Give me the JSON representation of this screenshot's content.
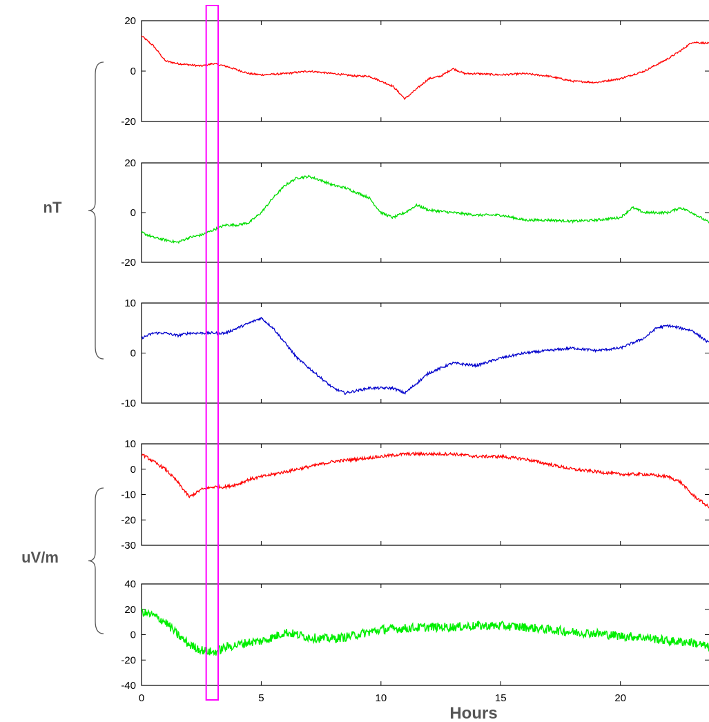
{
  "chart_data": {
    "type": "line",
    "xlabel": "Hours",
    "x_ticks": [
      0,
      5,
      10,
      15,
      20
    ],
    "xlim": [
      0,
      23.7
    ],
    "highlight_window": [
      2.7,
      3.2
    ],
    "highlight_color": "#ff00ff",
    "groups": [
      {
        "label": "nT",
        "panels": [
          0,
          1,
          2
        ]
      },
      {
        "label": "uV/m",
        "panels": [
          3,
          4
        ]
      }
    ],
    "panels": [
      {
        "color": "#ff0000",
        "ylim": [
          -20,
          20
        ],
        "yticks": [
          -20,
          0,
          20
        ],
        "noise": 0.35,
        "x": [
          0,
          0.5,
          1,
          1.5,
          2,
          2.5,
          3,
          3.5,
          4,
          4.5,
          5,
          6,
          7,
          8,
          9,
          9.5,
          10,
          10.5,
          11,
          11.5,
          12,
          12.5,
          13,
          13.5,
          14,
          15,
          16,
          17,
          18,
          19,
          20,
          21,
          22,
          22.5,
          23,
          23.7
        ],
        "y": [
          14,
          10,
          4,
          3,
          2.5,
          2,
          3,
          2,
          0.5,
          -1,
          -1.5,
          -1,
          0,
          -1,
          -2,
          -2,
          -4,
          -6,
          -11,
          -7,
          -3,
          -2,
          1,
          -1,
          -1,
          -1.5,
          -1,
          -2,
          -4,
          -4.5,
          -3,
          0,
          5,
          8,
          11.5,
          11
        ]
      },
      {
        "color": "#00dd00",
        "ylim": [
          -20,
          20
        ],
        "yticks": [
          -20,
          0,
          20
        ],
        "noise": 0.5,
        "x": [
          0,
          0.5,
          1,
          1.5,
          2,
          2.5,
          3,
          3.5,
          4,
          4.5,
          5,
          5.5,
          6,
          6.5,
          7,
          7.5,
          8,
          8.5,
          9,
          9.5,
          10,
          10.5,
          11,
          11.5,
          12,
          13,
          14,
          15,
          16,
          17,
          18,
          19,
          20,
          20.5,
          21,
          22,
          22.5,
          23,
          23.7
        ],
        "y": [
          -8,
          -10,
          -11,
          -12,
          -10,
          -9,
          -7,
          -5,
          -5,
          -4,
          0,
          6,
          11,
          14,
          14.5,
          13,
          11,
          10,
          8,
          6,
          0,
          -2,
          0,
          3,
          1,
          0,
          -1,
          -1,
          -3,
          -3,
          -3.5,
          -3,
          -2,
          2,
          0,
          0,
          2,
          0,
          -4
        ]
      },
      {
        "color": "#0000cc",
        "ylim": [
          -10,
          10
        ],
        "yticks": [
          -10,
          0,
          10
        ],
        "noise": 0.25,
        "x": [
          0,
          0.5,
          1,
          1.5,
          2,
          2.5,
          3,
          3.5,
          4,
          4.5,
          5,
          5.5,
          6,
          6.5,
          7,
          7.5,
          8,
          8.5,
          9,
          9.5,
          10,
          10.5,
          11,
          11.5,
          12,
          12.5,
          13,
          14,
          15,
          16,
          17,
          18,
          19,
          20,
          21,
          21.5,
          22,
          22.5,
          23,
          23.7
        ],
        "y": [
          3,
          4,
          4,
          3.5,
          4,
          4,
          4,
          4,
          5,
          6,
          7,
          5,
          2,
          -1,
          -3,
          -5,
          -7,
          -8,
          -7.5,
          -7,
          -7,
          -7,
          -8,
          -6,
          -4,
          -3,
          -2,
          -2.5,
          -1,
          0,
          0.5,
          1,
          0.5,
          1,
          3,
          5,
          5.5,
          5,
          4.5,
          2
        ]
      },
      {
        "color": "#ff0000",
        "ylim": [
          -30,
          10
        ],
        "yticks": [
          -30,
          -20,
          -10,
          0,
          10
        ],
        "noise": 0.6,
        "x": [
          0,
          0.5,
          1,
          1.5,
          2,
          2.5,
          3,
          3.5,
          4,
          4.5,
          5,
          6,
          7,
          8,
          9,
          10,
          11,
          12,
          13,
          14,
          15,
          16,
          17,
          18,
          19,
          20,
          21,
          22,
          22.5,
          23,
          23.7
        ],
        "y": [
          6,
          3,
          0,
          -5,
          -11,
          -8,
          -7,
          -7,
          -6,
          -4,
          -3,
          -1,
          1,
          3,
          4,
          5,
          6,
          6,
          6,
          5,
          5,
          4,
          2,
          0,
          -1,
          -2,
          -2,
          -3,
          -5,
          -10,
          -15
        ]
      },
      {
        "color": "#00ee00",
        "ylim": [
          -40,
          40
        ],
        "yticks": [
          -40,
          -20,
          0,
          20,
          40
        ],
        "noise": 3.5,
        "x": [
          0,
          0.5,
          1,
          1.5,
          2,
          2.5,
          3,
          3.5,
          4,
          4.5,
          5,
          5.5,
          6,
          6.5,
          7,
          7.5,
          8,
          8.5,
          9,
          9.5,
          10,
          11,
          12,
          13,
          14,
          15,
          16,
          17,
          18,
          19,
          20,
          21,
          22,
          23,
          23.7
        ],
        "y": [
          18,
          15,
          10,
          0,
          -8,
          -12,
          -14,
          -10,
          -8,
          -6,
          -5,
          -2,
          2,
          0,
          -2,
          -3,
          -3,
          -2,
          0,
          2,
          4,
          5,
          6,
          6,
          7,
          7,
          6,
          4,
          2,
          1,
          -1,
          -2,
          -5,
          -6,
          -10
        ]
      }
    ]
  }
}
